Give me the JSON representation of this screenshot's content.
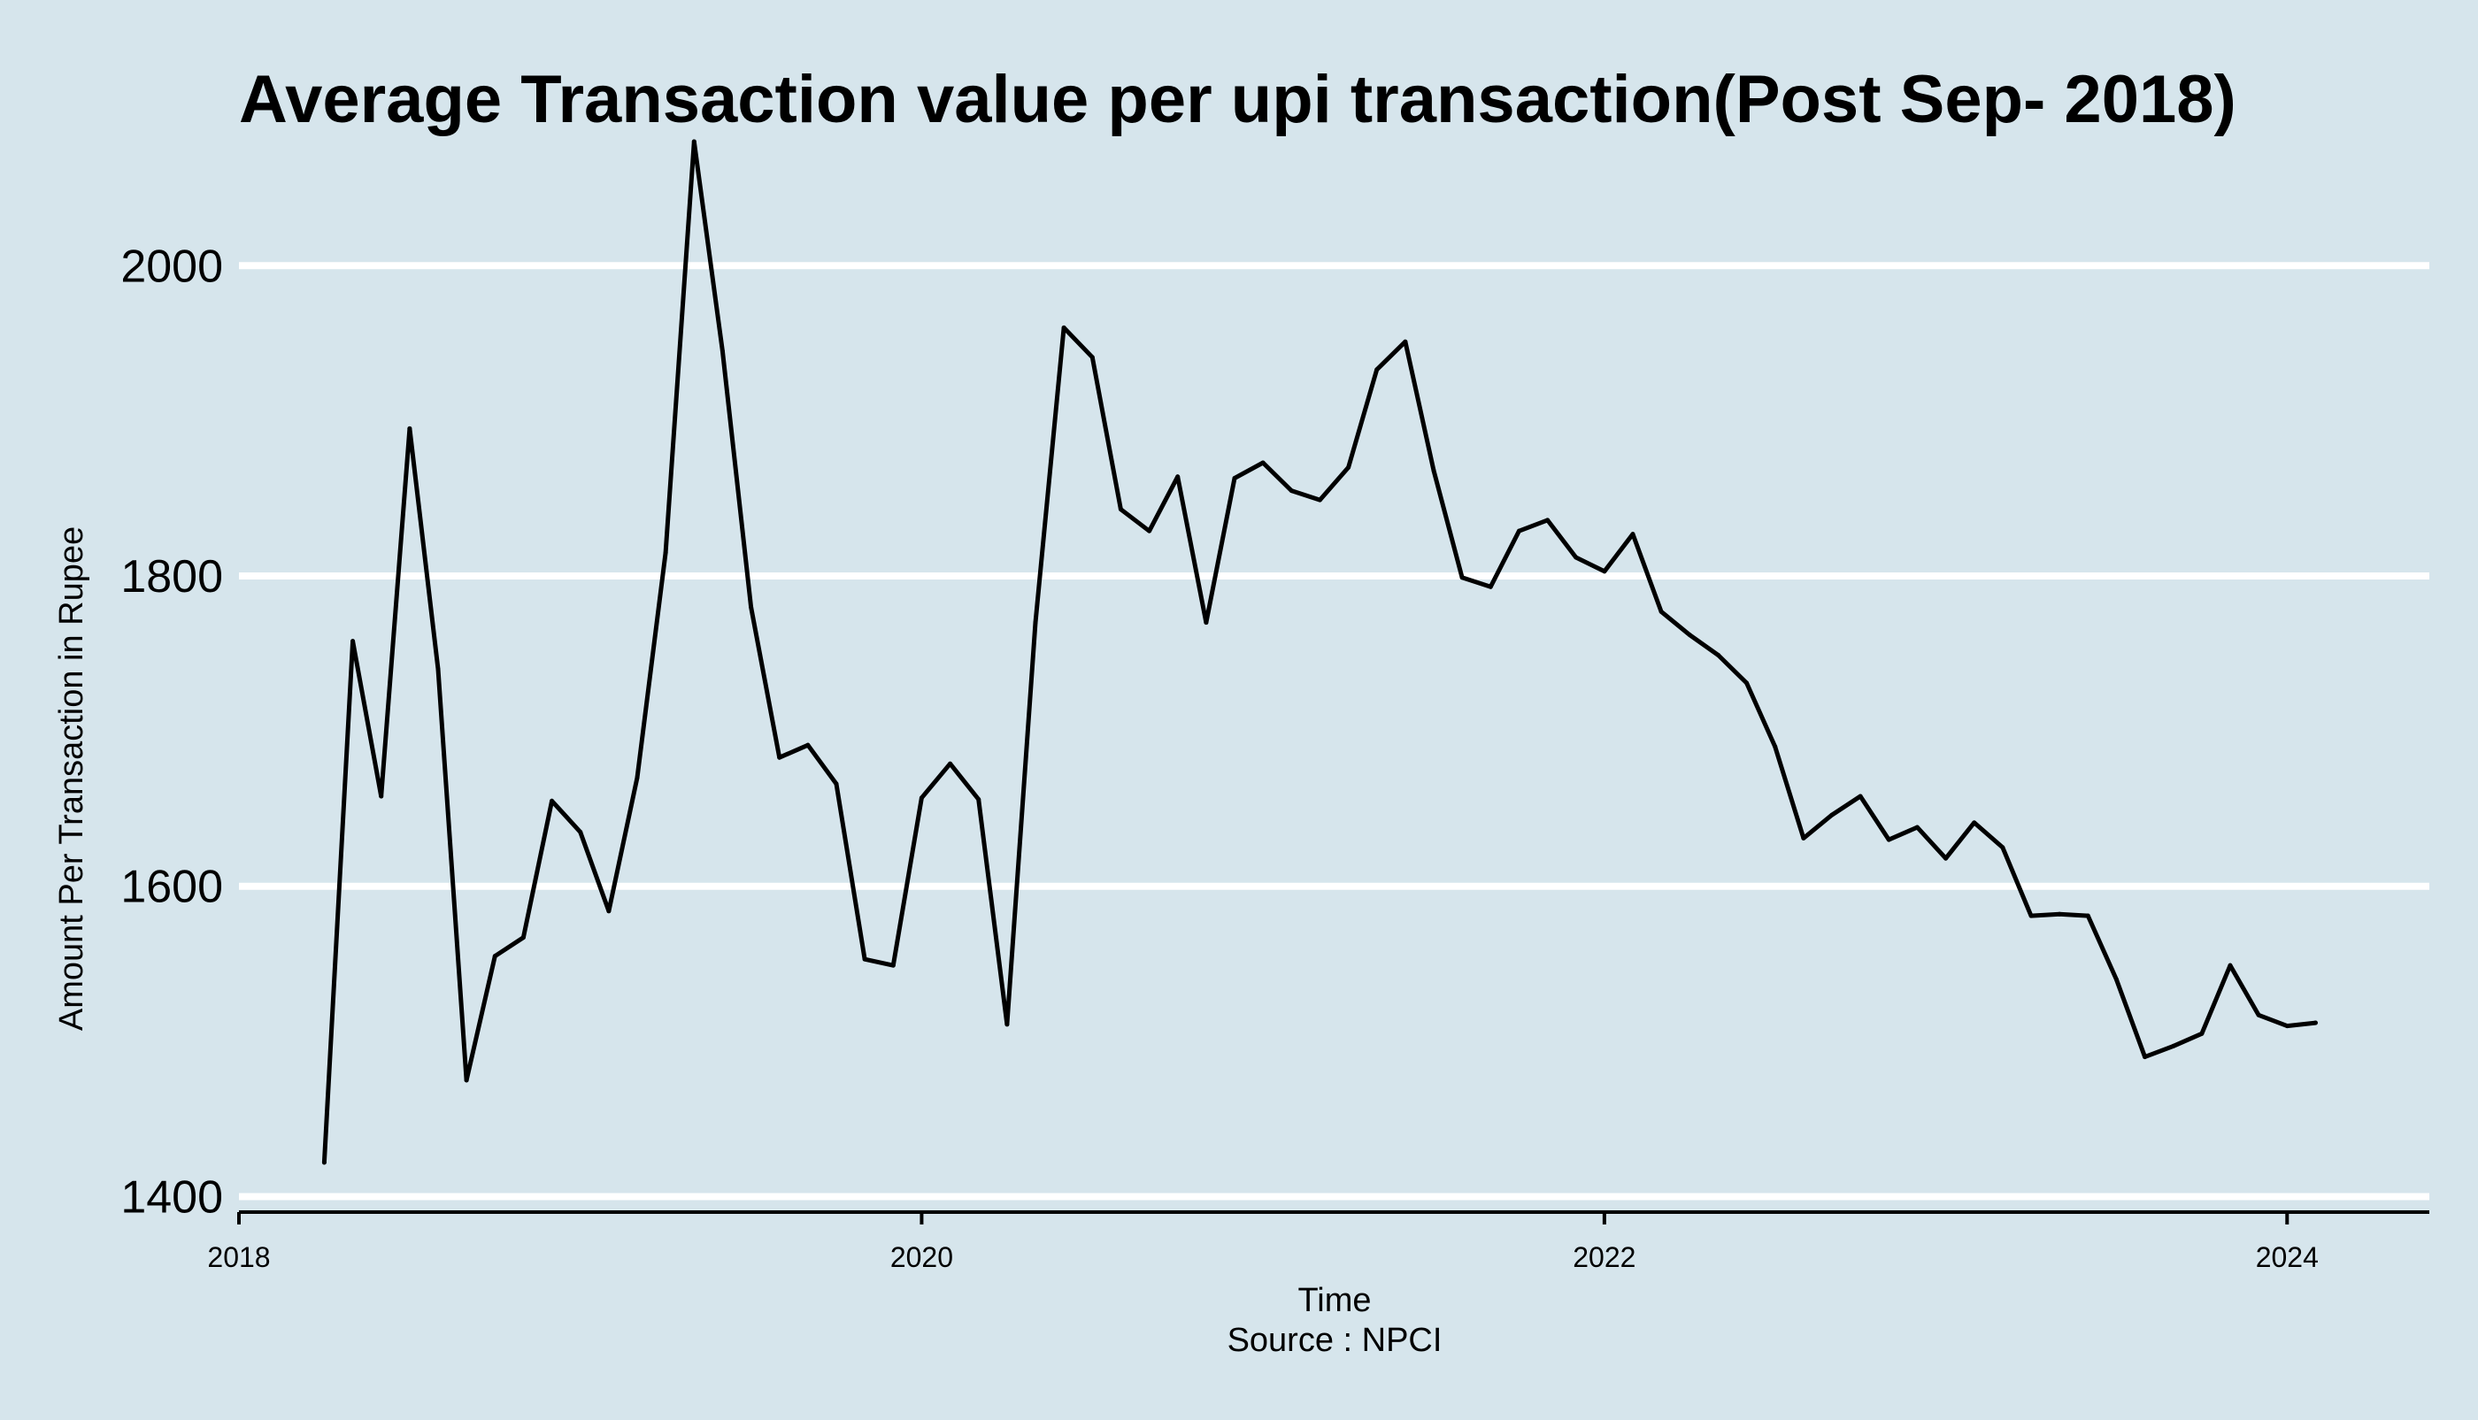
{
  "chart_data": {
    "type": "line",
    "title": "Average Transaction value per upi transaction(Post Sep- 2018)",
    "xlabel": "Time",
    "caption": "Source : NPCI",
    "ylabel": "Amount Per Transaction in Rupee",
    "xlim": [
      "2018-01-01",
      "2024-06-01"
    ],
    "ylim": [
      1390,
      2080
    ],
    "xticks": [
      "2018",
      "2020",
      "2022",
      "2024"
    ],
    "yticks": [
      1400,
      1600,
      1800,
      2000
    ],
    "grid": "horizontal",
    "line_color": "#000000",
    "background_color": "#d6e5ec",
    "series": [
      {
        "x": [
          "2018-04",
          "2018-05",
          "2018-06",
          "2018-07",
          "2018-08",
          "2018-09",
          "2018-10",
          "2018-11",
          "2018-12",
          "2019-01",
          "2019-02",
          "2019-03",
          "2019-04",
          "2019-05",
          "2019-06",
          "2019-07",
          "2019-08",
          "2019-09",
          "2019-10",
          "2019-11",
          "2019-12",
          "2020-01",
          "2020-02",
          "2020-03",
          "2020-04",
          "2020-05",
          "2020-06",
          "2020-07",
          "2020-08",
          "2020-09",
          "2020-10",
          "2020-11",
          "2020-12",
          "2021-01",
          "2021-02",
          "2021-03",
          "2021-04",
          "2021-05",
          "2021-06",
          "2021-07",
          "2021-08",
          "2021-09",
          "2021-10",
          "2021-11",
          "2021-12",
          "2022-01",
          "2022-02",
          "2022-03",
          "2022-04",
          "2022-05",
          "2022-06",
          "2022-07",
          "2022-08",
          "2022-09",
          "2022-10",
          "2022-11",
          "2022-12",
          "2023-01",
          "2023-02",
          "2023-03",
          "2023-04",
          "2023-05",
          "2023-06",
          "2023-07",
          "2023-08",
          "2023-09",
          "2023-10",
          "2023-11",
          "2023-12",
          "2024-01",
          "2024-02"
        ],
        "values": [
          1422,
          1758,
          1658,
          1895,
          1740,
          1475,
          1555,
          1567,
          1655,
          1635,
          1584,
          1670,
          1815,
          2080,
          1945,
          1780,
          1683,
          1691,
          1666,
          1553,
          1549,
          1657,
          1679,
          1656,
          1511,
          1770,
          1960,
          1941,
          1843,
          1829,
          1864,
          1770,
          1863,
          1873,
          1855,
          1849,
          1870,
          1933,
          1951,
          1868,
          1799,
          1793,
          1829,
          1836,
          1812,
          1803,
          1827,
          1777,
          1762,
          1749,
          1731,
          1690,
          1631,
          1646,
          1658,
          1630,
          1638,
          1618,
          1641,
          1625,
          1581,
          1582,
          1581,
          1540,
          1490,
          1497,
          1505,
          1549,
          1517,
          1510,
          1512
        ]
      }
    ]
  }
}
